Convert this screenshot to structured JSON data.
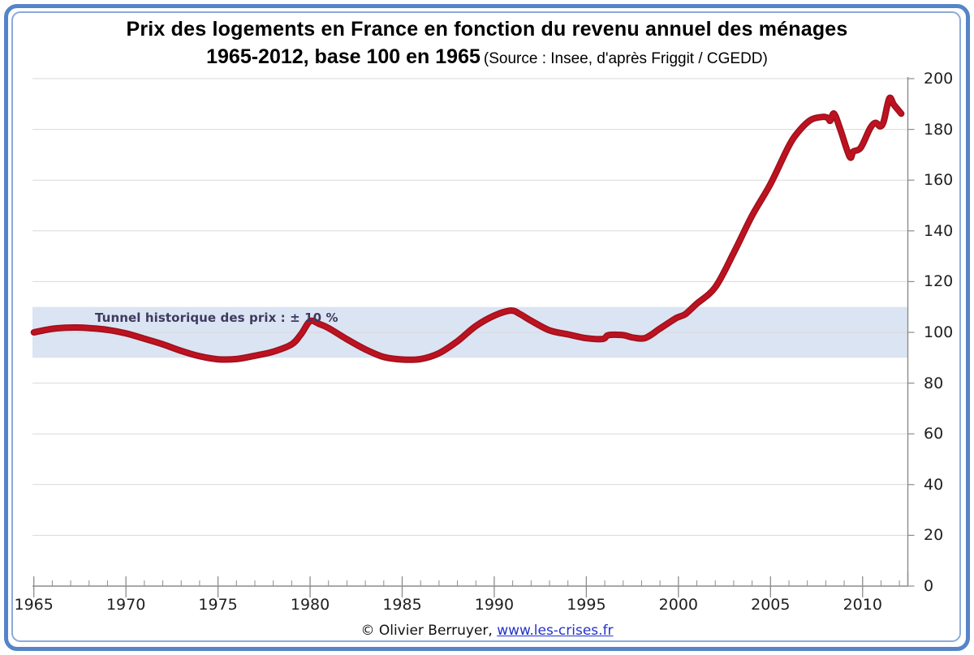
{
  "title": {
    "line1": "Prix des logements en France en fonction du revenu annuel des ménages",
    "line2_bold": "1965-2012, base 100 en 1965",
    "line2_source": "(Source : Insee, d'après Friggit / CGEDD)"
  },
  "annotation": {
    "tunnel_label": "Tunnel historique des prix : ± 10 %"
  },
  "footer": {
    "copyright": "© Olivier Berruyer, ",
    "link": "www.les-crises.fr"
  },
  "colors": {
    "line": "#bd1220",
    "line_edge": "#9c101d",
    "band": "#dbe4f2",
    "grid": "#d9d9d9",
    "axis": "#8c8c8c",
    "text": "#1f1f1f",
    "annotation_text": "#3e3a60",
    "link": "#2433cc",
    "border_outer": "#5585c6",
    "border_inner": "#8aabd9"
  },
  "chart_data": {
    "type": "line",
    "title": "Prix des logements en France en fonction du revenu annuel des ménages",
    "subtitle": "1965-2012, base 100 en 1965",
    "source": "(Source : Insee, d'après Friggit / CGEDD)",
    "xlabel": "",
    "ylabel": "",
    "xlim": [
      1965,
      2012.6
    ],
    "ylim": [
      0,
      200
    ],
    "x_ticks": [
      1965,
      1970,
      1975,
      1980,
      1985,
      1990,
      1995,
      2000,
      2005,
      2010
    ],
    "x_minor_tick_step": 1,
    "y_ticks": [
      0,
      20,
      40,
      60,
      80,
      100,
      120,
      140,
      160,
      180,
      200
    ],
    "grid": "horizontal",
    "legend": "none",
    "band": {
      "label": "Tunnel historique des prix : ± 10 %",
      "from": 90,
      "to": 110
    },
    "series": [
      {
        "points": [
          [
            1965,
            100
          ],
          [
            1966,
            101.4
          ],
          [
            1967,
            101.9
          ],
          [
            1968,
            101.7
          ],
          [
            1969,
            101.0
          ],
          [
            1970,
            99.6
          ],
          [
            1971,
            97.5
          ],
          [
            1972,
            95.3
          ],
          [
            1973,
            92.7
          ],
          [
            1974,
            90.6
          ],
          [
            1975,
            89.4
          ],
          [
            1976,
            89.5
          ],
          [
            1977,
            90.8
          ],
          [
            1978,
            92.4
          ],
          [
            1979,
            95.3
          ],
          [
            1979.5,
            99.2
          ],
          [
            1980,
            104.4
          ],
          [
            1980.5,
            103.3
          ],
          [
            1981,
            101.7
          ],
          [
            1982,
            97.3
          ],
          [
            1983,
            93.3
          ],
          [
            1984,
            90.3
          ],
          [
            1985,
            89.3
          ],
          [
            1986,
            89.5
          ],
          [
            1987,
            91.8
          ],
          [
            1988,
            96.5
          ],
          [
            1989,
            102.5
          ],
          [
            1990,
            106.6
          ],
          [
            1990.9,
            108.6
          ],
          [
            1991.4,
            107.2
          ],
          [
            1992,
            104.6
          ],
          [
            1993,
            100.8
          ],
          [
            1994,
            99.2
          ],
          [
            1995,
            97.7
          ],
          [
            1995.9,
            97.4
          ],
          [
            1996.2,
            98.9
          ],
          [
            1997,
            98.9
          ],
          [
            1997.5,
            98.0
          ],
          [
            1998.2,
            97.8
          ],
          [
            1999,
            101.5
          ],
          [
            1999.8,
            105.3
          ],
          [
            2000.1,
            106.3
          ],
          [
            2000.4,
            107.3
          ],
          [
            2001,
            111.3
          ],
          [
            2002,
            117.8
          ],
          [
            2003,
            131.3
          ],
          [
            2004,
            146.0
          ],
          [
            2005,
            158.5
          ],
          [
            2006,
            173.5
          ],
          [
            2006.6,
            179.8
          ],
          [
            2007.2,
            183.8
          ],
          [
            2007.8,
            184.9
          ],
          [
            2008.1,
            184.6
          ],
          [
            2008.25,
            183.4
          ],
          [
            2008.45,
            186.2
          ],
          [
            2008.8,
            179.8
          ],
          [
            2009.3,
            169.2
          ],
          [
            2009.5,
            171.3
          ],
          [
            2009.9,
            172.8
          ],
          [
            2010.4,
            180.3
          ],
          [
            2010.7,
            182.6
          ],
          [
            2010.95,
            181.2
          ],
          [
            2011.15,
            183.2
          ],
          [
            2011.45,
            192.2
          ],
          [
            2011.7,
            189.7
          ],
          [
            2012.1,
            186.2
          ]
        ]
      }
    ]
  }
}
